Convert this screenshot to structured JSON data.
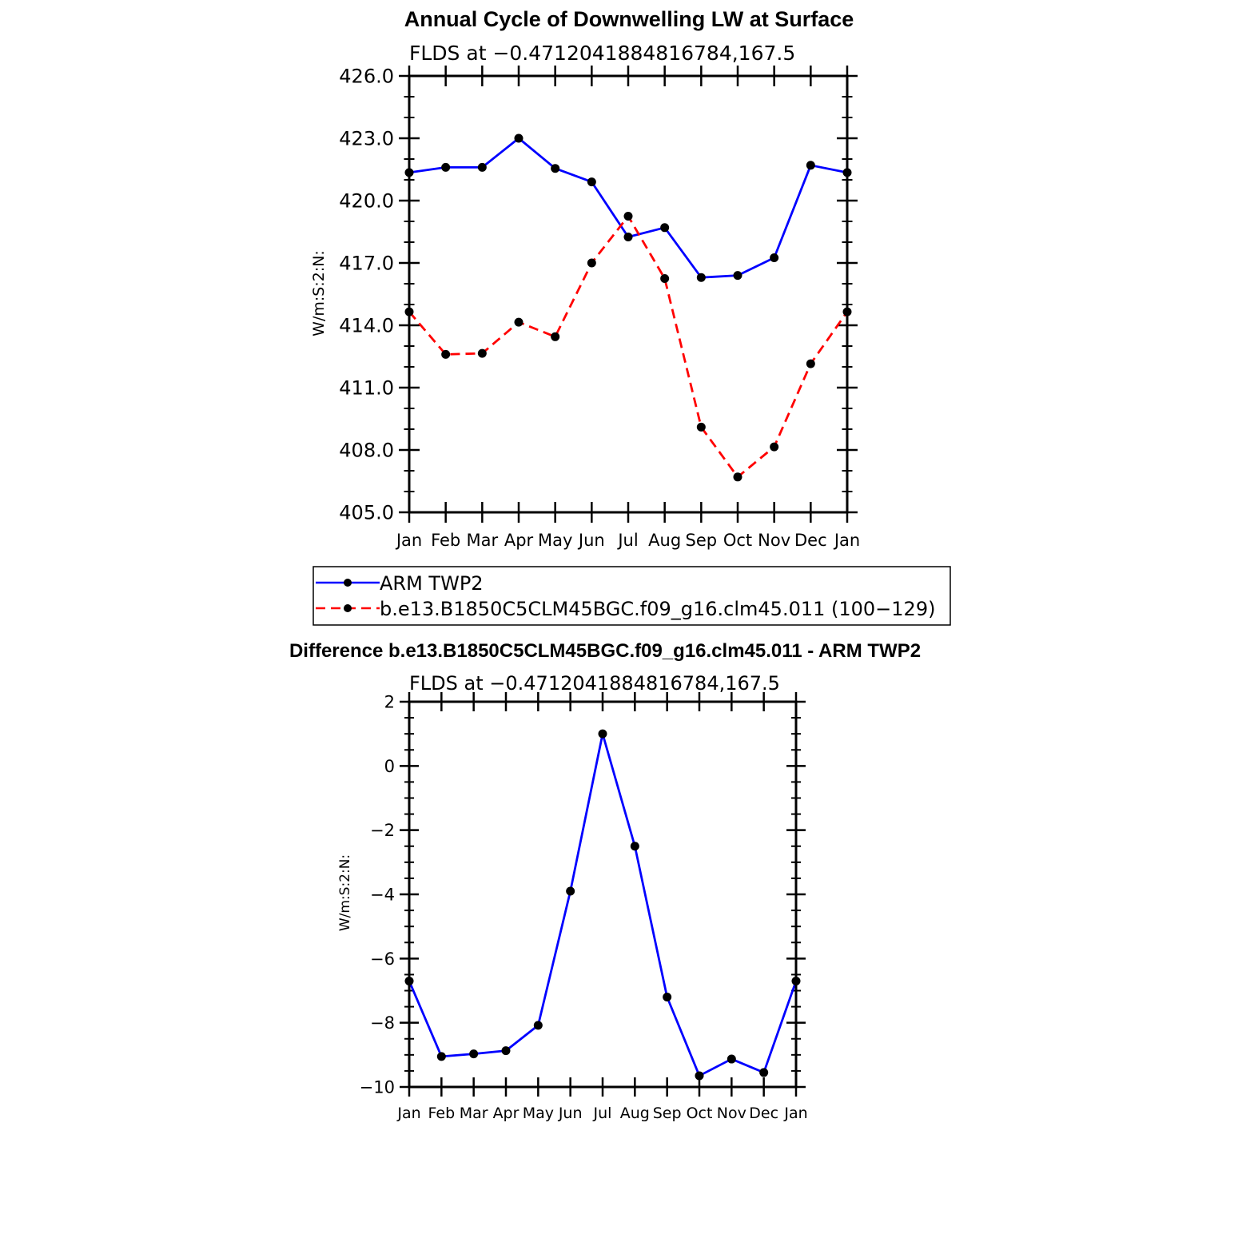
{
  "chart_data": [
    {
      "type": "line",
      "title": "Annual Cycle of Downwelling LW at Surface",
      "subtitle": "FLDS at −0.4712041884816784,167.5",
      "xlabel": "",
      "ylabel": "W/m:S:2:N:",
      "categories": [
        "Jan",
        "Feb",
        "Mar",
        "Apr",
        "May",
        "Jun",
        "Jul",
        "Aug",
        "Sep",
        "Oct",
        "Nov",
        "Dec",
        "Jan"
      ],
      "ylim": [
        405.0,
        426.0
      ],
      "yticks": [
        "405.0",
        "408.0",
        "411.0",
        "414.0",
        "417.0",
        "420.0",
        "423.0",
        "426.0"
      ],
      "grid": false,
      "legend_placement": "below",
      "series": [
        {
          "name": "ARM TWP2",
          "color": "#0000ff",
          "dash": "solid",
          "values": [
            421.35,
            421.6,
            421.6,
            423.0,
            421.55,
            420.9,
            418.25,
            418.7,
            416.3,
            416.4,
            417.25,
            421.7,
            421.35
          ]
        },
        {
          "name": "b.e13.B1850C5CLM45BGC.f09_g16.clm45.011 (100−129)",
          "color": "#ff0000",
          "dash": "dashed",
          "values": [
            414.65,
            412.6,
            412.65,
            414.15,
            413.45,
            417.0,
            419.25,
            416.25,
            409.1,
            406.7,
            408.15,
            412.15,
            414.65
          ]
        }
      ]
    },
    {
      "type": "line",
      "title": "Difference b.e13.B1850C5CLM45BGC.f09_g16.clm45.011 - ARM TWP2",
      "subtitle": "FLDS at −0.4712041884816784,167.5",
      "xlabel": "",
      "ylabel": "W/m:S:2:N:",
      "categories": [
        "Jan",
        "Feb",
        "Mar",
        "Apr",
        "May",
        "Jun",
        "Jul",
        "Aug",
        "Sep",
        "Oct",
        "Nov",
        "Dec",
        "Jan"
      ],
      "ylim": [
        -10,
        2
      ],
      "yticks": [
        "−10",
        "−8",
        "−6",
        "−4",
        "−2",
        "0",
        "2"
      ],
      "grid": false,
      "series": [
        {
          "color": "#0000ff",
          "dash": "solid",
          "values": [
            -6.7,
            -9.05,
            -8.97,
            -8.87,
            -8.08,
            -3.9,
            1.0,
            -2.5,
            -7.2,
            -9.65,
            -9.13,
            -9.55,
            -6.7
          ]
        }
      ]
    }
  ]
}
